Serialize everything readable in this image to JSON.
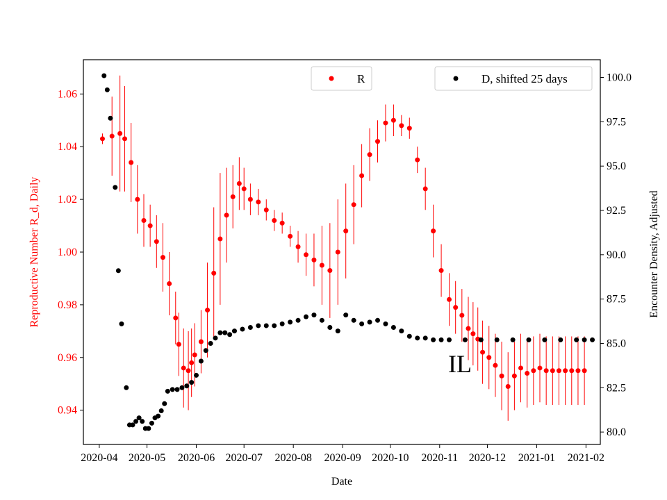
{
  "chart_data": {
    "type": "scatter",
    "title": "",
    "annotation": "IL",
    "xlabel": "Date",
    "ylabel_left": "Reproductive Number R_d, Daily",
    "ylabel_right": "Encounter Density, Adjusted",
    "x_ticks": [
      "2020-04",
      "2020-05",
      "2020-06",
      "2020-07",
      "2020-08",
      "2020-09",
      "2020-10",
      "2020-11",
      "2020-12",
      "2021-01",
      "2021-02"
    ],
    "x_range_days": [
      -10,
      315
    ],
    "y_left_ticks": [
      "0.94",
      "0.96",
      "0.98",
      "1.00",
      "1.02",
      "1.04",
      "1.06"
    ],
    "y_left_range": [
      0.927,
      1.073
    ],
    "y_right_ticks": [
      "80.0",
      "82.5",
      "85.0",
      "87.5",
      "90.0",
      "92.5",
      "95.0",
      "97.5",
      "100.0"
    ],
    "y_right_range": [
      79.3,
      101.0
    ],
    "left_color": "#ff0000",
    "right_color": "#000000",
    "legend": [
      {
        "label": "R",
        "color": "#ff0000",
        "position": "top-center"
      },
      {
        "label": "D, shifted 25 days",
        "color": "#000000",
        "position": "top-right"
      }
    ],
    "series_R": {
      "name": "R",
      "color": "#ff0000",
      "dates_day_offset": [
        2,
        8,
        13,
        16,
        20,
        24,
        28,
        32,
        36,
        40,
        44,
        48,
        50,
        53,
        56,
        58,
        60,
        64,
        68,
        72,
        76,
        80,
        84,
        88,
        91,
        95,
        100,
        105,
        110,
        115,
        120,
        125,
        130,
        135,
        140,
        145,
        150,
        155,
        160,
        165,
        170,
        175,
        180,
        185,
        190,
        195,
        200,
        205,
        210,
        215,
        220,
        224,
        228,
        232,
        235,
        238,
        241,
        245,
        249,
        253,
        257,
        261,
        265,
        269,
        273,
        277,
        281,
        285,
        289,
        293,
        297,
        301,
        305
      ],
      "values": [
        1.043,
        1.044,
        1.045,
        1.043,
        1.034,
        1.02,
        1.012,
        1.01,
        1.004,
        0.998,
        0.988,
        0.975,
        0.965,
        0.956,
        0.955,
        0.958,
        0.961,
        0.966,
        0.978,
        0.992,
        1.005,
        1.014,
        1.021,
        1.026,
        1.024,
        1.02,
        1.019,
        1.016,
        1.012,
        1.011,
        1.006,
        1.002,
        0.999,
        0.997,
        0.995,
        0.993,
        1.0,
        1.008,
        1.018,
        1.029,
        1.037,
        1.042,
        1.049,
        1.05,
        1.048,
        1.047,
        1.035,
        1.024,
        1.008,
        0.993,
        0.982,
        0.979,
        0.976,
        0.971,
        0.969,
        0.967,
        0.962,
        0.96,
        0.957,
        0.953,
        0.949,
        0.953,
        0.956,
        0.954,
        0.955,
        0.956,
        0.955,
        0.955,
        0.955,
        0.955,
        0.955,
        0.955,
        0.955
      ],
      "error": [
        0.002,
        0.015,
        0.022,
        0.02,
        0.015,
        0.013,
        0.01,
        0.008,
        0.01,
        0.013,
        0.012,
        0.01,
        0.012,
        0.015,
        0.015,
        0.013,
        0.012,
        0.012,
        0.018,
        0.025,
        0.025,
        0.018,
        0.012,
        0.01,
        0.008,
        0.006,
        0.005,
        0.004,
        0.004,
        0.004,
        0.004,
        0.006,
        0.008,
        0.01,
        0.015,
        0.018,
        0.02,
        0.018,
        0.015,
        0.012,
        0.01,
        0.008,
        0.007,
        0.006,
        0.004,
        0.004,
        0.005,
        0.008,
        0.01,
        0.01,
        0.01,
        0.01,
        0.01,
        0.012,
        0.012,
        0.012,
        0.012,
        0.012,
        0.012,
        0.013,
        0.013,
        0.013,
        0.013,
        0.013,
        0.013,
        0.013,
        0.013,
        0.013,
        0.013,
        0.013,
        0.013,
        0.013,
        0.013
      ]
    },
    "series_D": {
      "name": "D, shifted 25 days",
      "color": "#000000",
      "dates_day_offset": [
        3,
        5,
        7,
        10,
        12,
        14,
        17,
        19,
        21,
        23,
        25,
        27,
        29,
        31,
        33,
        35,
        37,
        39,
        41,
        43,
        46,
        49,
        52,
        55,
        58,
        61,
        64,
        67,
        70,
        73,
        76,
        79,
        82,
        85,
        90,
        95,
        100,
        105,
        110,
        115,
        120,
        125,
        130,
        135,
        140,
        145,
        150,
        155,
        160,
        165,
        170,
        175,
        180,
        185,
        190,
        195,
        200,
        205,
        210,
        215,
        220,
        230,
        240,
        250,
        260,
        270,
        280,
        290,
        300,
        305,
        310
      ],
      "values": [
        100.1,
        99.3,
        97.7,
        93.8,
        89.1,
        86.1,
        82.5,
        80.4,
        80.4,
        80.6,
        80.8,
        80.6,
        80.2,
        80.2,
        80.5,
        80.8,
        80.9,
        81.2,
        81.6,
        82.3,
        82.4,
        82.4,
        82.5,
        82.6,
        82.8,
        83.2,
        84.0,
        84.6,
        85.0,
        85.3,
        85.6,
        85.6,
        85.5,
        85.7,
        85.8,
        85.9,
        86.0,
        86.0,
        86.0,
        86.1,
        86.2,
        86.3,
        86.5,
        86.6,
        86.3,
        85.9,
        85.7,
        86.6,
        86.3,
        86.1,
        86.2,
        86.3,
        86.1,
        85.9,
        85.7,
        85.4,
        85.3,
        85.3,
        85.2,
        85.2,
        85.2,
        85.2,
        85.2,
        85.2,
        85.2,
        85.2,
        85.2,
        85.2,
        85.2,
        85.2,
        85.2
      ]
    }
  }
}
